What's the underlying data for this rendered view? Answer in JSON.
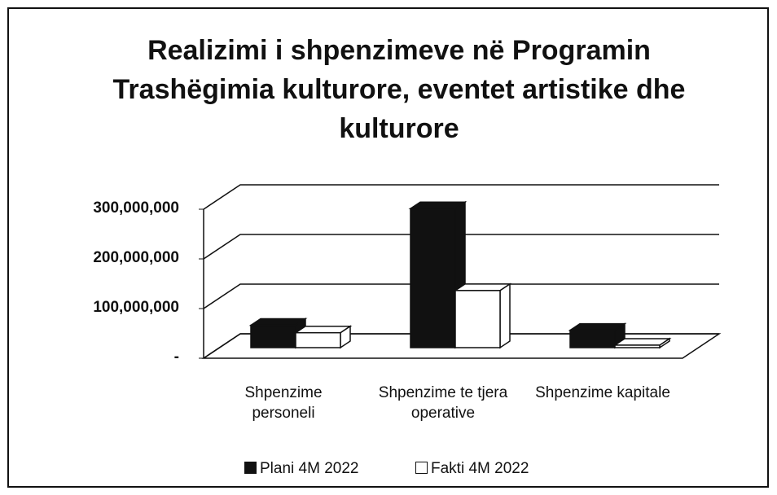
{
  "chart_data": {
    "type": "bar3d",
    "title": "Realizimi i shpenzimeve në Programin Trashëgimia kulturore,  eventet artistike dhe kulturore",
    "categories": [
      "Shpenzime personeli",
      "Shpenzime te tjera operative",
      "Shpenzime kapitale"
    ],
    "series": [
      {
        "name": "Plani 4M 2022",
        "color": "#111111",
        "values": [
          45000000,
          280000000,
          35000000
        ]
      },
      {
        "name": "Fakti 4M 2022",
        "color": "#ffffff",
        "values": [
          30000000,
          115000000,
          5000000
        ]
      }
    ],
    "ylim": [
      0,
      300000000
    ],
    "yticks": [
      {
        "value": 0,
        "label": "-"
      },
      {
        "value": 100000000,
        "label": "100,000,000"
      },
      {
        "value": 200000000,
        "label": "200,000,000"
      },
      {
        "value": 300000000,
        "label": "300,000,000"
      }
    ],
    "grid": true,
    "legend": "bottom"
  }
}
